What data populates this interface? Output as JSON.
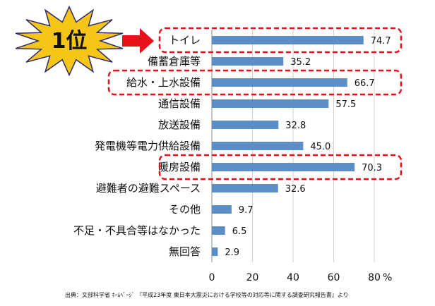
{
  "badge": {
    "rank_text": "1位",
    "starburst_color": "#f5c518",
    "arrow_color": "#e8111a"
  },
  "highlight": {
    "color": "#e8111a",
    "categories": [
      "トイレ",
      "給水・上水設備",
      "暖房設備"
    ]
  },
  "source_note": "出典：文部科学省 ﾎｰﾑﾍﾟｰｼﾞ 『平成23年度 東日本大震災における学校等の対応等に関する調査研究報告書』より",
  "chart_data": {
    "type": "bar",
    "orientation": "horizontal",
    "categories": [
      "トイレ",
      "備蓄倉庫等",
      "給水・上水設備",
      "通信設備",
      "放送設備",
      "発電機等電力供給設備",
      "暖房設備",
      "避難者の避難スペース",
      "その他",
      "不足・不具合等はなかった",
      "無回答"
    ],
    "values": [
      74.7,
      35.2,
      66.7,
      57.5,
      32.8,
      45.0,
      70.3,
      32.6,
      9.7,
      6.5,
      2.9
    ],
    "value_labels": [
      "74.7",
      "35.2",
      "66.7",
      "57.5",
      "32.8",
      "45.0",
      "70.3",
      "32.6",
      "9.7",
      "6.5",
      "2.9"
    ],
    "xlim": [
      0,
      80
    ],
    "x_ticks": [
      0,
      20,
      40,
      60,
      80
    ],
    "x_tick_labels": [
      "0",
      "20",
      "40",
      "60",
      "80"
    ],
    "x_unit": "%",
    "bar_color": "#5b8ec6",
    "grid": true,
    "title": "",
    "xlabel": "",
    "ylabel": ""
  }
}
